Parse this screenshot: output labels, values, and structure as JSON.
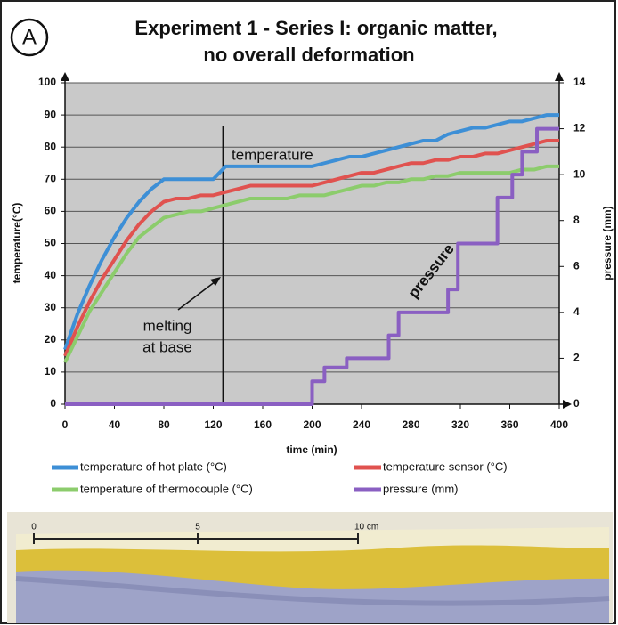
{
  "panel_label": "A",
  "chart_data": {
    "type": "line",
    "title": [
      "Experiment 1 - Series I: organic matter,",
      "no overall deformation"
    ],
    "x_label": "time (min)",
    "y_label": "temperature(°C)",
    "y2_label": "pressure (mm)",
    "xlim": [
      0,
      400
    ],
    "xticks": [
      0,
      40,
      80,
      120,
      160,
      200,
      240,
      280,
      320,
      360,
      400
    ],
    "ylim": [
      0,
      100
    ],
    "yticks": [
      0,
      10,
      20,
      30,
      40,
      50,
      60,
      70,
      80,
      90,
      100
    ],
    "y2lim": [
      0,
      14
    ],
    "y2ticks": [
      0,
      2,
      4,
      6,
      8,
      10,
      12,
      14
    ],
    "grid": true,
    "x": [
      0,
      10,
      20,
      30,
      40,
      50,
      60,
      70,
      80,
      90,
      100,
      110,
      120,
      130,
      140,
      150,
      160,
      170,
      180,
      190,
      200,
      210,
      220,
      230,
      240,
      250,
      260,
      270,
      280,
      290,
      300,
      310,
      320,
      330,
      340,
      350,
      360,
      370,
      380,
      390,
      400
    ],
    "series": [
      {
        "name": "temperature of hot plate (°C)",
        "color": "#3d8fd6",
        "values": [
          17,
          28,
          37,
          45,
          52,
          58,
          63,
          67,
          70,
          70,
          70,
          70,
          70,
          74,
          74,
          74,
          74,
          74,
          74,
          74,
          74,
          75,
          76,
          77,
          77,
          78,
          79,
          80,
          81,
          82,
          82,
          84,
          85,
          86,
          86,
          87,
          88,
          88,
          89,
          90,
          90
        ]
      },
      {
        "name": "temperature sensor (°C)",
        "color": "#e0524f",
        "values": [
          15,
          24,
          32,
          39,
          45,
          51,
          56,
          60,
          63,
          64,
          64,
          65,
          65,
          66,
          67,
          68,
          68,
          68,
          68,
          68,
          68,
          69,
          70,
          71,
          72,
          72,
          73,
          74,
          75,
          75,
          76,
          76,
          77,
          77,
          78,
          78,
          79,
          80,
          81,
          82,
          82
        ]
      },
      {
        "name": "temperature of thermocouple (°C)",
        "color": "#8ccc6c",
        "values": [
          13,
          21,
          29,
          35,
          41,
          47,
          52,
          55,
          58,
          59,
          60,
          60,
          61,
          62,
          63,
          64,
          64,
          64,
          64,
          65,
          65,
          65,
          66,
          67,
          68,
          68,
          69,
          69,
          70,
          70,
          71,
          71,
          72,
          72,
          72,
          72,
          72,
          73,
          73,
          74,
          74
        ]
      },
      {
        "name": "pressure (mm)",
        "color": "#8a5fc2",
        "axis": "y2",
        "x": [
          0,
          200,
          200,
          210,
          210,
          228,
          228,
          262,
          262,
          270,
          270,
          310,
          310,
          318,
          318,
          350,
          350,
          362,
          362,
          370,
          370,
          382,
          382,
          400
        ],
        "values": [
          0,
          0,
          1,
          1,
          1.6,
          1.6,
          2,
          2,
          3,
          3,
          4,
          4,
          5,
          5,
          7,
          7,
          9,
          9,
          10,
          10,
          11,
          11,
          12,
          12
        ]
      }
    ],
    "marker_x": 128,
    "annotations": {
      "melting": [
        "melting",
        "at base"
      ],
      "temperature": "temperature",
      "pressure": "pressure"
    }
  },
  "photo": {
    "scale_labels": [
      "0",
      "5",
      "10 cm"
    ]
  }
}
